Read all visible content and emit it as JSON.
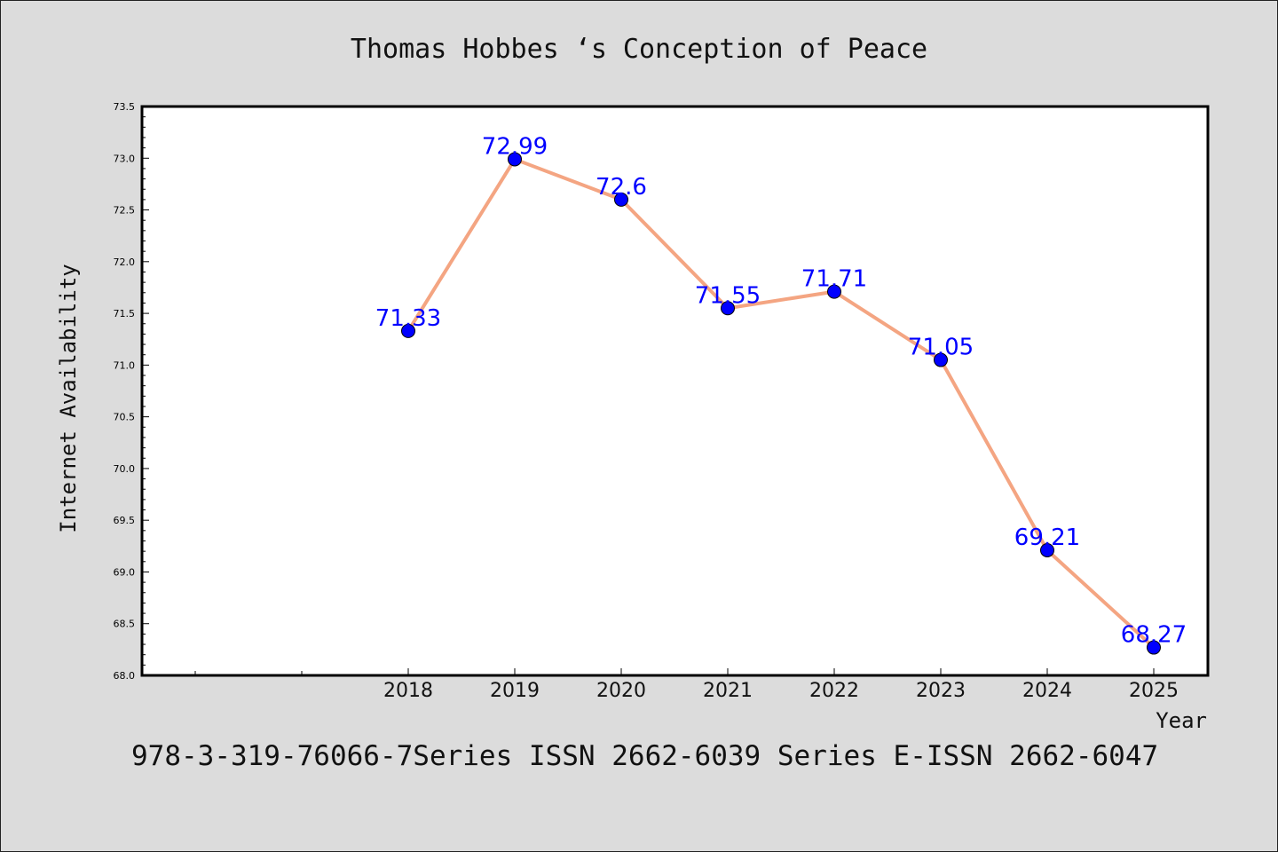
{
  "page": {
    "title": "Thomas Hobbes ‘s Conception of Peace",
    "footer": "978-3-319-76066-7Series ISSN 2662-6039 Series E-ISSN 2662-6047"
  },
  "colors": {
    "background": "#dcdcdc",
    "plot_background": "#ffffff",
    "line": "#f4a582",
    "marker": "#0000ff",
    "label": "#0000ff"
  },
  "chart_data": {
    "type": "line",
    "title": "Thomas Hobbes ‘s Conception of Peace",
    "xlabel": "Year",
    "ylabel": "Internet Availability",
    "x": [
      "2018",
      "2019",
      "2020",
      "2021",
      "2022",
      "2023",
      "2024",
      "2025"
    ],
    "series": [
      {
        "values": [
          71.33,
          72.99,
          72.6,
          71.55,
          71.71,
          71.05,
          69.21,
          68.27
        ],
        "data_labels": [
          "71.33",
          "72.99",
          "72.6",
          "71.55",
          "71.71",
          "71.05",
          "69.21",
          "68.27"
        ]
      }
    ],
    "ylim": [
      68.0,
      73.5
    ],
    "yticks": [
      "68.0",
      "68.5",
      "69.0",
      "69.5",
      "70.0",
      "70.5",
      "71.0",
      "71.5",
      "72.0",
      "72.5",
      "73.0",
      "73.5"
    ],
    "grid": false,
    "legend": "none"
  }
}
